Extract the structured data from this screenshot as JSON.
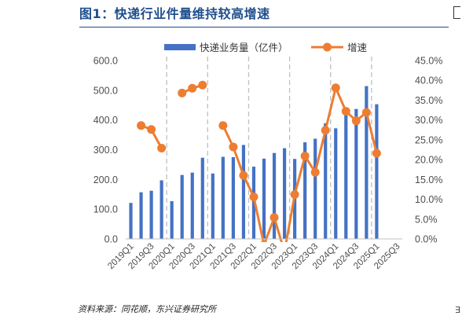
{
  "title": "图1：快递行业件量维持较高增速",
  "source": "资料来源：同花顺，东兴证券研究所",
  "colors": {
    "bar": "#4472c4",
    "line": "#ed7d31",
    "title": "#1f4e8c",
    "grid": "#bfbfbf"
  },
  "chart_data": {
    "type": "bar+line",
    "categories": [
      "2019Q1",
      "2019Q2",
      "2019Q3",
      "2019Q4",
      "2020Q1",
      "2020Q2",
      "2020Q3",
      "2020Q4",
      "2021Q1",
      "2021Q2",
      "2021Q3",
      "2021Q4",
      "2022Q1",
      "2022Q2",
      "2022Q3",
      "2022Q4",
      "2023Q1",
      "2023Q2",
      "2023Q3",
      "2023Q4",
      "2024Q1",
      "2024Q2",
      "2024Q3",
      "2024Q4",
      "2025Q1",
      "2025Q2",
      "2025Q3"
    ],
    "x_tick_labels": [
      "2019Q1",
      "2019Q3",
      "2020Q1",
      "2020Q3",
      "2021Q1",
      "2021Q3",
      "2022Q1",
      "2022Q3",
      "2023Q1",
      "2023Q3",
      "2024Q1",
      "2024Q3",
      "2025Q1",
      "2025Q3"
    ],
    "series": [
      {
        "name": "快递业务量（亿件）",
        "type": "bar",
        "axis": "left",
        "values": [
          121,
          157,
          162,
          197,
          127,
          215,
          223,
          273,
          220,
          276,
          275,
          316,
          243,
          270,
          289,
          305,
          269,
          325,
          337,
          389,
          372,
          436,
          437,
          514,
          453,
          null,
          null
        ]
      },
      {
        "name": "增速",
        "type": "line",
        "axis": "right",
        "values": [
          null,
          28.6,
          27.6,
          22.9,
          null,
          36.8,
          38.0,
          38.8,
          null,
          28.6,
          23.2,
          16.0,
          10.6,
          -1.5,
          5.4,
          -3.3,
          11.2,
          20.9,
          16.8,
          27.4,
          38.1,
          32.2,
          29.8,
          31.9,
          21.6,
          null,
          null
        ]
      }
    ],
    "y_left": {
      "min": 0,
      "max": 600,
      "step": 100,
      "tick_labels": [
        "0.0",
        "100.0",
        "200.0",
        "300.0",
        "400.0",
        "500.0",
        "600.0"
      ]
    },
    "y_right": {
      "min": 0,
      "max": 45,
      "step": 5,
      "tick_labels": [
        "0.0%",
        "5.0%",
        "10.0%",
        "15.0%",
        "20.0%",
        "25.0%",
        "30.0%",
        "35.0%",
        "40.0%",
        "45.0%"
      ]
    },
    "vertical_dashed_separators": "after each Q4",
    "legend_position": "top"
  }
}
